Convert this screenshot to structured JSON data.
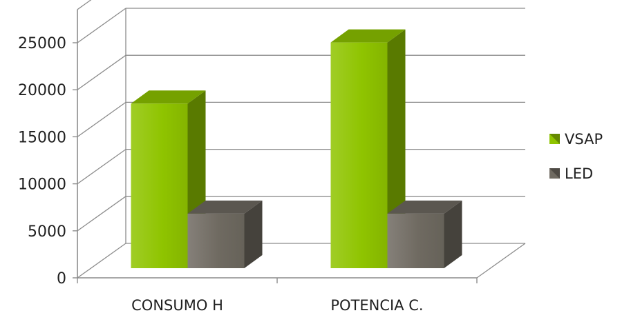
{
  "chart_data": {
    "type": "bar",
    "categories": [
      "CONSUMO H",
      "POTENCIA C."
    ],
    "series": [
      {
        "name": "VSAP",
        "values": [
          17500,
          24000
        ],
        "color": "#8fc400"
      },
      {
        "name": "LED",
        "values": [
          5800,
          5800
        ],
        "color": "#6f6a61"
      }
    ],
    "ylim": [
      0,
      25000
    ],
    "yticks": [
      0,
      5000,
      10000,
      15000,
      20000,
      25000
    ],
    "grid": true,
    "legend_position": "right",
    "style": "3d-column"
  }
}
